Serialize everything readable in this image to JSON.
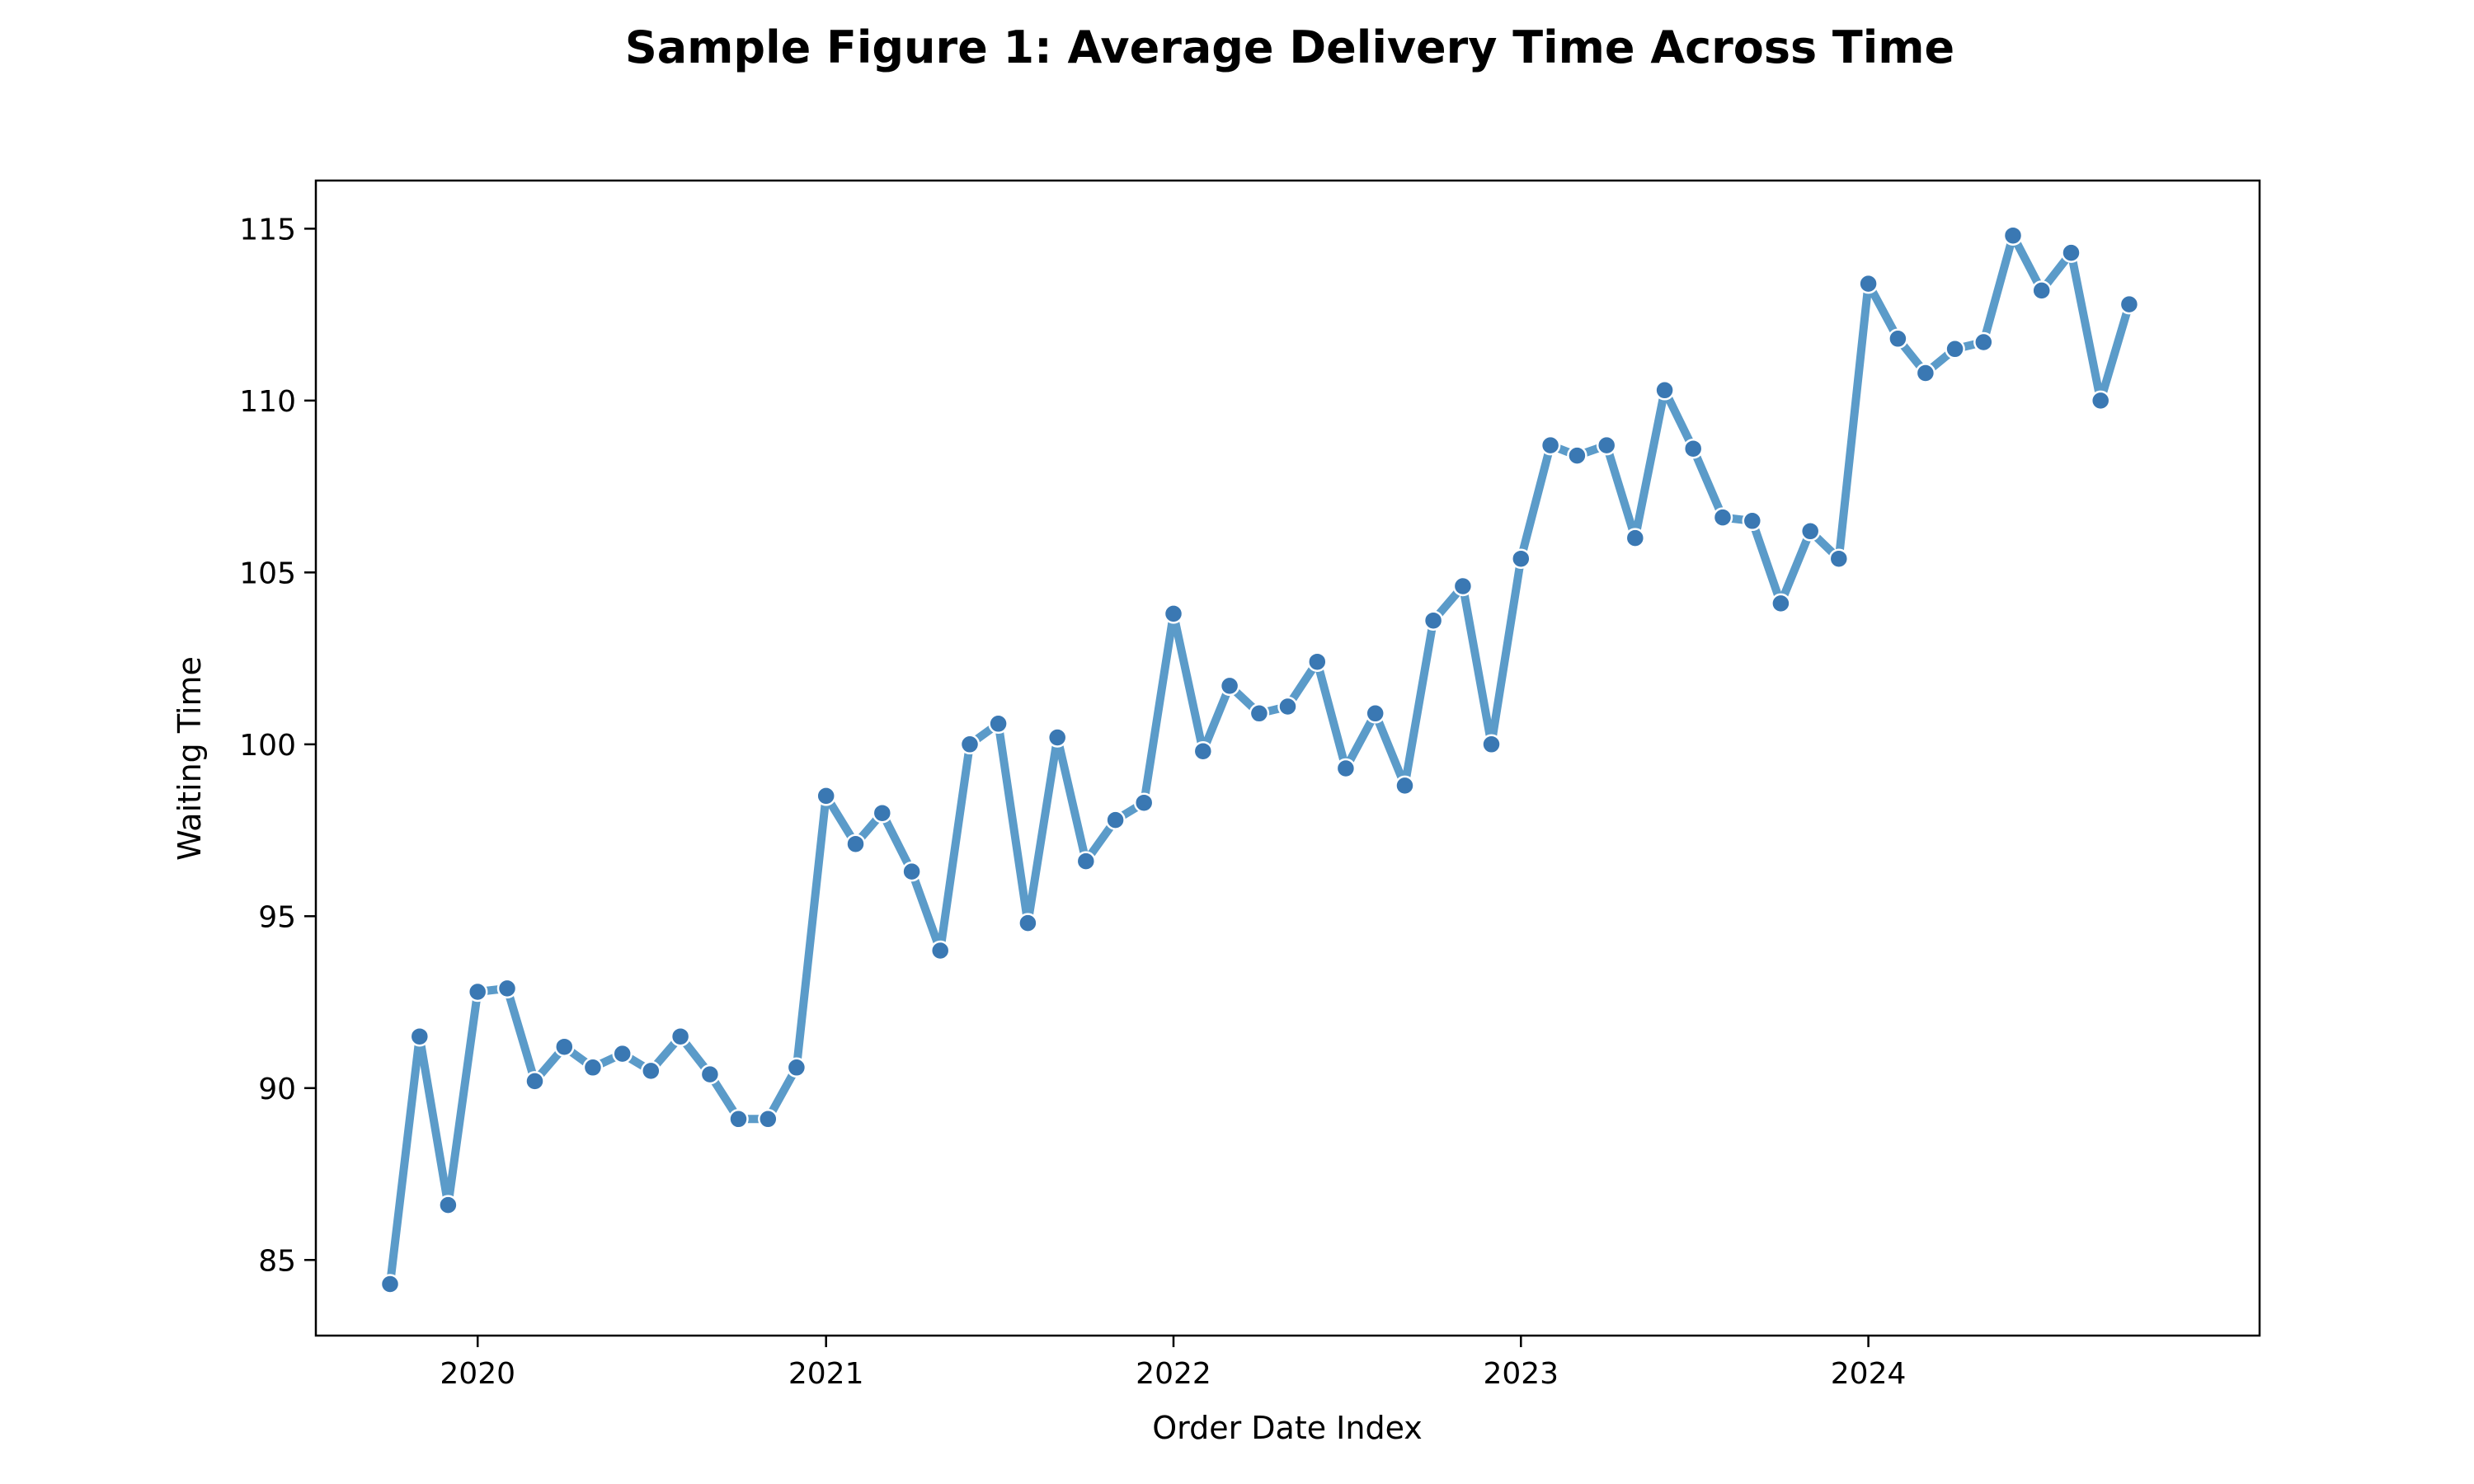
{
  "chart_data": {
    "type": "line",
    "title": "Sample Figure 1: Average Delivery Time Across Time",
    "xlabel": "Order Date Index",
    "ylabel": "Waiting Time",
    "x_ticks": [
      "2020",
      "2021",
      "2022",
      "2023",
      "2024"
    ],
    "y_ticks": [
      85,
      90,
      95,
      100,
      105,
      110,
      115
    ],
    "xlim": [
      "2019-07-15",
      "2025-02-15"
    ],
    "ylim": [
      82.8,
      116.4
    ],
    "grid": false,
    "marker": "circle",
    "colors": {
      "line": "#5b9bc9",
      "marker_fill": "#3a78b3",
      "marker_edge": "#ffffff"
    },
    "series": [
      {
        "x": [
          "2019-10-01",
          "2019-11-01",
          "2019-12-01",
          "2020-01-01",
          "2020-02-01",
          "2020-03-01",
          "2020-04-01",
          "2020-05-01",
          "2020-06-01",
          "2020-07-01",
          "2020-08-01",
          "2020-09-01",
          "2020-10-01",
          "2020-11-01",
          "2020-12-01",
          "2021-01-01",
          "2021-02-01",
          "2021-03-01",
          "2021-04-01",
          "2021-05-01",
          "2021-06-01",
          "2021-07-01",
          "2021-08-01",
          "2021-09-01",
          "2021-10-01",
          "2021-11-01",
          "2021-12-01",
          "2022-01-01",
          "2022-02-01",
          "2022-03-01",
          "2022-04-01",
          "2022-05-01",
          "2022-06-01",
          "2022-07-01",
          "2022-08-01",
          "2022-09-01",
          "2022-10-01",
          "2022-11-01",
          "2022-12-01",
          "2023-01-01",
          "2023-02-01",
          "2023-03-01",
          "2023-04-01",
          "2023-05-01",
          "2023-06-01",
          "2023-07-01",
          "2023-08-01",
          "2023-09-01",
          "2023-10-01",
          "2023-11-01",
          "2023-12-01",
          "2024-01-01",
          "2024-02-01",
          "2024-03-01",
          "2024-04-01",
          "2024-05-01",
          "2024-06-01",
          "2024-07-01",
          "2024-08-01",
          "2024-09-01",
          "2024-10-01"
        ],
        "y": [
          84.3,
          91.5,
          86.6,
          92.8,
          92.9,
          90.2,
          91.2,
          90.6,
          91.0,
          90.5,
          91.5,
          90.4,
          89.1,
          89.1,
          90.6,
          98.5,
          97.1,
          98.0,
          96.3,
          94.0,
          100.0,
          100.6,
          94.8,
          100.2,
          96.6,
          97.8,
          98.3,
          103.8,
          99.8,
          101.7,
          100.9,
          101.1,
          102.4,
          99.3,
          100.9,
          98.8,
          103.6,
          104.6,
          100.0,
          105.4,
          108.7,
          108.4,
          108.7,
          106.0,
          110.3,
          108.6,
          106.6,
          106.5,
          104.1,
          106.2,
          105.4,
          113.4,
          111.8,
          110.8,
          111.5,
          111.7,
          114.8,
          113.2,
          114.3,
          110.0,
          112.8
        ]
      }
    ]
  }
}
